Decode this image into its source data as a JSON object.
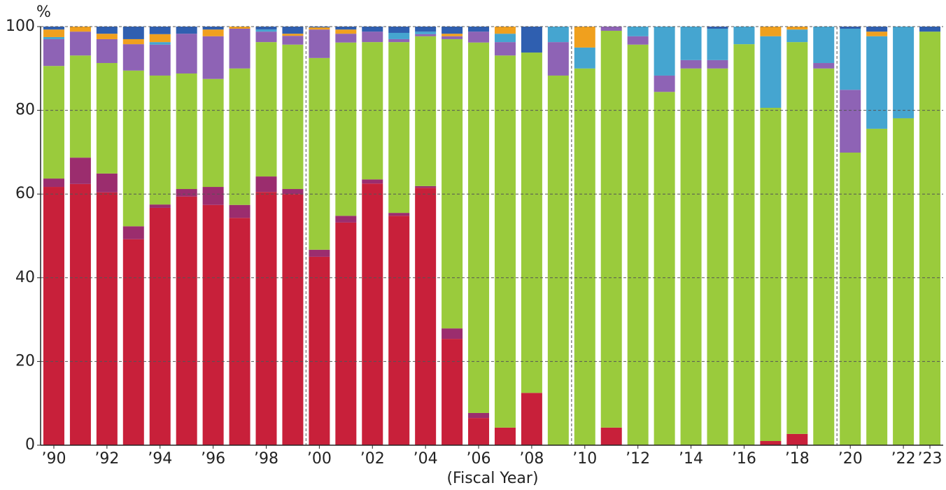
{
  "chart_data": {
    "type": "stacked_bar",
    "y_unit": "%",
    "x_label": "(Fiscal Year)",
    "categories": [
      "’90",
      null,
      "’92",
      null,
      "’94",
      null,
      "’96",
      null,
      "’98",
      null,
      "’00",
      null,
      "’02",
      null,
      "’04",
      null,
      "’06",
      null,
      "’08",
      null,
      "’10",
      null,
      "’12",
      null,
      "’14",
      null,
      "’16",
      null,
      "’18",
      null,
      "’20",
      null,
      "’22",
      "’23"
    ],
    "ylim": [
      0,
      100
    ],
    "yticks": [
      0,
      20,
      40,
      60,
      80,
      100
    ],
    "grid": true,
    "series": [
      {
        "color": "#c8203a",
        "values": [
          61.7,
          62.4,
          60.4,
          49.2,
          56.7,
          59.4,
          57.4,
          54.3,
          60.5,
          60.0,
          45.0,
          53.2,
          62.5,
          54.8,
          61.5,
          25.4,
          6.5,
          4.2,
          12.5,
          0,
          0,
          4.2,
          0,
          0,
          0,
          0,
          0,
          1.0,
          2.7,
          0,
          0,
          0,
          0,
          0
        ]
      },
      {
        "color": "#9b2d6e",
        "values": [
          2.0,
          6.3,
          4.5,
          3.1,
          0.8,
          1.8,
          4.3,
          3.1,
          3.7,
          1.2,
          1.7,
          1.6,
          1.0,
          0.7,
          0.4,
          2.5,
          1.2,
          0,
          0,
          0,
          0,
          0,
          0,
          0,
          0,
          0,
          0,
          0,
          0,
          0,
          0,
          0,
          0,
          0
        ]
      },
      {
        "color": "#9acb3c",
        "values": [
          26.9,
          24.4,
          26.4,
          37.2,
          30.8,
          27.6,
          25.8,
          32.6,
          32.1,
          34.5,
          45.8,
          41.4,
          32.8,
          40.8,
          35.8,
          69.1,
          88.5,
          88.9,
          81.3,
          88.3,
          90.0,
          94.8,
          95.7,
          84.4,
          90.0,
          90.0,
          95.8,
          79.6,
          93.6,
          90.0,
          69.9,
          75.6,
          78.1,
          98.8
        ]
      },
      {
        "color": "#8e63b5",
        "values": [
          6.4,
          5.7,
          5.7,
          6.3,
          7.4,
          9.5,
          10.2,
          9.5,
          2.5,
          2.1,
          6.8,
          2.1,
          2.5,
          0.7,
          0.5,
          0.7,
          2.6,
          3.2,
          0,
          8.0,
          0,
          1.0,
          2.0,
          3.9,
          2.0,
          2.0,
          0,
          0,
          0,
          1.3,
          15.0,
          0,
          0,
          0
        ]
      },
      {
        "color": "#45a5d0",
        "values": [
          0.5,
          0,
          0,
          0,
          0.6,
          0,
          0,
          0,
          0.5,
          0,
          0,
          0,
          0,
          1.5,
          0.6,
          0,
          0,
          2.0,
          0,
          3.7,
          5.0,
          0,
          2.3,
          11.7,
          8.0,
          7.5,
          4.2,
          17.1,
          3.0,
          8.7,
          14.6,
          22.1,
          21.9,
          0
        ]
      },
      {
        "color": "#f0a01e",
        "values": [
          1.8,
          1.2,
          1.3,
          1.2,
          1.9,
          0,
          1.6,
          0.5,
          0,
          0.5,
          0.5,
          1.0,
          0,
          0,
          0,
          0.6,
          0,
          1.7,
          0,
          0,
          5.0,
          0,
          0,
          0,
          0,
          0,
          0,
          2.3,
          0.7,
          0,
          0,
          1.1,
          0,
          0
        ]
      },
      {
        "color": "#2f5fb0",
        "values": [
          0.7,
          0,
          1.7,
          3.0,
          1.8,
          1.7,
          0.7,
          0,
          0.7,
          1.7,
          0.2,
          0.7,
          1.2,
          1.5,
          1.2,
          1.7,
          1.2,
          0,
          6.2,
          0,
          0,
          0,
          0,
          0,
          0,
          0.5,
          0,
          0,
          0,
          0,
          0.5,
          1.2,
          0,
          1.2
        ]
      }
    ]
  }
}
